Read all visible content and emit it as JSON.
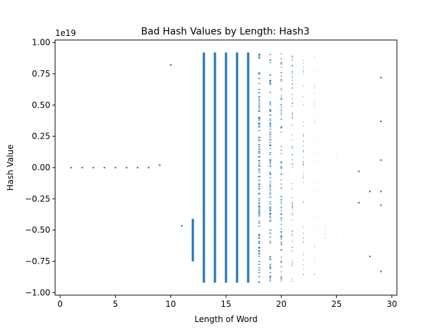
{
  "chart_data": {
    "type": "scatter",
    "title": "Bad Hash Values by Length: Hash3",
    "xlabel": "Length of Word",
    "ylabel": "Hash Value",
    "y_offset_label": "1e19",
    "xlim": [
      -0.45,
      30.45
    ],
    "ylim": [
      -1.02,
      1.02
    ],
    "x_ticks": [
      0,
      5,
      10,
      15,
      20,
      25,
      30
    ],
    "x_tick_labels": [
      "0",
      "5",
      "10",
      "15",
      "20",
      "25",
      "30"
    ],
    "y_ticks": [
      -1.0,
      -0.75,
      -0.5,
      -0.25,
      0.0,
      0.25,
      0.5,
      0.75,
      1.0
    ],
    "y_tick_labels": [
      "−1.00",
      "−0.75",
      "−0.50",
      "−0.25",
      "0.00",
      "0.25",
      "0.50",
      "0.75",
      "1.00"
    ],
    "grid": false,
    "legend": false,
    "marker_color": "#1f77b4",
    "series": [
      {
        "isolated_points": [
          {
            "x": 1,
            "y": 0.0
          },
          {
            "x": 2,
            "y": 0.0
          },
          {
            "x": 3,
            "y": 0.0
          },
          {
            "x": 4,
            "y": 0.0
          },
          {
            "x": 5,
            "y": 0.0
          },
          {
            "x": 6,
            "y": 0.0
          },
          {
            "x": 7,
            "y": 0.0
          },
          {
            "x": 8,
            "y": 0.0
          },
          {
            "x": 9,
            "y": 0.02
          },
          {
            "x": 10,
            "y": 0.82
          },
          {
            "x": 11,
            "y": -0.465
          },
          {
            "x": 27,
            "y": -0.03
          },
          {
            "x": 27,
            "y": -0.28
          },
          {
            "x": 28,
            "y": -0.71
          },
          {
            "x": 28,
            "y": -0.19
          },
          {
            "x": 29,
            "y": 0.72
          },
          {
            "x": 29,
            "y": 0.37
          },
          {
            "x": 29,
            "y": 0.06
          },
          {
            "x": 29,
            "y": -0.19
          },
          {
            "x": 29,
            "y": -0.3
          },
          {
            "x": 29,
            "y": -0.83
          }
        ],
        "columns": [
          {
            "x": 12,
            "y_min": -0.75,
            "y_max": -0.41,
            "density": 1.0
          },
          {
            "x": 13,
            "y_min": -0.92,
            "y_max": 0.92,
            "density": 1.0
          },
          {
            "x": 14,
            "y_min": -0.92,
            "y_max": 0.92,
            "density": 1.0
          },
          {
            "x": 15,
            "y_min": -0.92,
            "y_max": 0.92,
            "density": 1.0
          },
          {
            "x": 16,
            "y_min": -0.92,
            "y_max": 0.92,
            "density": 1.0
          },
          {
            "x": 17,
            "y_min": -0.92,
            "y_max": 0.92,
            "density": 1.0
          },
          {
            "x": 18,
            "y_min": -0.92,
            "y_max": 0.92,
            "density": 0.95
          },
          {
            "x": 19,
            "y_min": -0.92,
            "y_max": 0.92,
            "density": 0.85
          },
          {
            "x": 20,
            "y_min": -0.92,
            "y_max": 0.92,
            "density": 0.7
          },
          {
            "x": 21,
            "y_min": -0.92,
            "y_max": 0.92,
            "density": 0.5
          },
          {
            "x": 22,
            "y_min": -0.92,
            "y_max": 0.92,
            "density": 0.35
          },
          {
            "x": 23,
            "y_min": -0.92,
            "y_max": 0.9,
            "density": 0.2
          },
          {
            "x": 24,
            "y_min": -0.92,
            "y_max": 0.6,
            "density": 0.1
          },
          {
            "x": 25,
            "y_min": -0.85,
            "y_max": 0.85,
            "density": 0.05
          },
          {
            "x": 26,
            "y_min": -0.65,
            "y_max": 0.72,
            "density": 0.03
          }
        ]
      }
    ]
  }
}
